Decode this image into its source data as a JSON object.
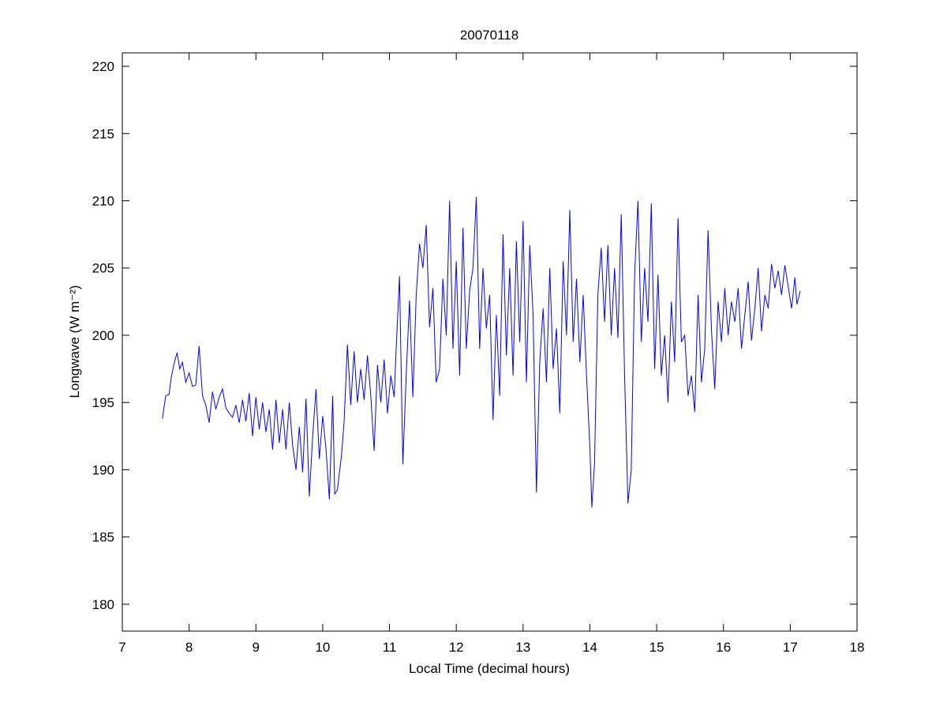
{
  "chart_data": {
    "type": "line",
    "title": "20070118",
    "xlabel": "Local Time (decimal hours)",
    "ylabel": "Longwave (W m⁻²)",
    "xlim": [
      7,
      18
    ],
    "ylim": [
      178,
      221
    ],
    "xticks": [
      7,
      8,
      9,
      10,
      11,
      12,
      13,
      14,
      15,
      16,
      17,
      18
    ],
    "yticks": [
      180,
      185,
      190,
      195,
      200,
      205,
      210,
      215,
      220
    ],
    "grid": false,
    "x": [
      7.6,
      7.65,
      7.7,
      7.73,
      7.78,
      7.82,
      7.86,
      7.9,
      7.95,
      8.0,
      8.05,
      8.1,
      8.15,
      8.2,
      8.25,
      8.3,
      8.35,
      8.4,
      8.45,
      8.5,
      8.55,
      8.6,
      8.65,
      8.7,
      8.75,
      8.8,
      8.85,
      8.9,
      8.95,
      9.0,
      9.05,
      9.1,
      9.15,
      9.2,
      9.25,
      9.3,
      9.35,
      9.4,
      9.45,
      9.5,
      9.55,
      9.6,
      9.65,
      9.7,
      9.75,
      9.8,
      9.85,
      9.9,
      9.95,
      10.0,
      10.05,
      10.1,
      10.15,
      10.18,
      10.22,
      10.28,
      10.32,
      10.37,
      10.42,
      10.47,
      10.52,
      10.57,
      10.62,
      10.67,
      10.72,
      10.77,
      10.82,
      10.87,
      10.92,
      10.97,
      11.02,
      11.07,
      11.1,
      11.15,
      11.2,
      11.25,
      11.3,
      11.35,
      11.4,
      11.45,
      11.5,
      11.55,
      11.6,
      11.65,
      11.7,
      11.75,
      11.8,
      11.85,
      11.9,
      11.95,
      12.0,
      12.05,
      12.1,
      12.15,
      12.2,
      12.25,
      12.3,
      12.35,
      12.4,
      12.45,
      12.5,
      12.55,
      12.6,
      12.65,
      12.7,
      12.75,
      12.8,
      12.85,
      12.9,
      12.95,
      13.0,
      13.05,
      13.1,
      13.15,
      13.2,
      13.25,
      13.3,
      13.35,
      13.4,
      13.45,
      13.5,
      13.55,
      13.6,
      13.65,
      13.7,
      13.75,
      13.8,
      13.85,
      13.9,
      13.95,
      14.0,
      14.03,
      14.07,
      14.12,
      14.17,
      14.22,
      14.27,
      14.32,
      14.37,
      14.42,
      14.47,
      14.52,
      14.57,
      14.62,
      14.67,
      14.72,
      14.77,
      14.82,
      14.87,
      14.92,
      14.97,
      15.02,
      15.07,
      15.12,
      15.17,
      15.22,
      15.27,
      15.32,
      15.37,
      15.42,
      15.47,
      15.52,
      15.57,
      15.62,
      15.67,
      15.72,
      15.77,
      15.82,
      15.87,
      15.92,
      15.97,
      16.02,
      16.07,
      16.12,
      16.17,
      16.22,
      16.27,
      16.32,
      16.37,
      16.42,
      16.47,
      16.52,
      16.57,
      16.62,
      16.67,
      16.72,
      16.77,
      16.82,
      16.87,
      16.92,
      16.97,
      17.02,
      17.07,
      17.1,
      17.15
    ],
    "series": [
      {
        "color": "#0000ff",
        "values": [
          193.8,
          195.5,
          195.6,
          196.8,
          198.0,
          198.7,
          197.5,
          198.0,
          196.5,
          197.2,
          196.2,
          196.3,
          199.2,
          195.5,
          194.8,
          193.5,
          195.8,
          194.5,
          195.4,
          196.0,
          194.6,
          194.2,
          193.9,
          194.8,
          193.5,
          195.2,
          193.6,
          195.7,
          192.5,
          195.4,
          193.0,
          195.0,
          192.8,
          194.5,
          191.5,
          195.2,
          192.0,
          194.5,
          191.5,
          195.0,
          191.8,
          190.0,
          193.2,
          189.8,
          195.3,
          188.0,
          192.5,
          196.0,
          190.8,
          194.0,
          191.5,
          187.8,
          195.5,
          188.2,
          188.5,
          191.0,
          193.5,
          199.3,
          194.8,
          198.8,
          195.0,
          197.5,
          195.2,
          198.5,
          195.5,
          191.4,
          197.8,
          195.0,
          198.2,
          194.2,
          197.0,
          195.4,
          199.0,
          204.4,
          190.4,
          197.0,
          202.6,
          195.4,
          203.0,
          206.8,
          205.0,
          208.2,
          200.6,
          203.5,
          196.5,
          197.5,
          204.2,
          200.0,
          210.0,
          199.0,
          205.5,
          197.0,
          208.0,
          199.0,
          203.3,
          205.0,
          210.3,
          199.0,
          205.0,
          200.5,
          203.0,
          193.7,
          201.5,
          195.5,
          207.5,
          198.5,
          205.0,
          197.0,
          207.0,
          199.5,
          208.5,
          196.5,
          206.7,
          201.5,
          188.3,
          198.0,
          202.0,
          196.5,
          205.0,
          197.5,
          200.5,
          194.2,
          205.5,
          200.0,
          209.3,
          199.5,
          204.2,
          198.0,
          203.0,
          197.0,
          191.7,
          187.2,
          190.5,
          203.0,
          206.5,
          201.0,
          206.7,
          200.0,
          205.0,
          199.8,
          209.0,
          197.0,
          187.5,
          190.0,
          204.5,
          210.0,
          199.5,
          205.0,
          201.0,
          209.8,
          197.5,
          204.5,
          197.0,
          200.0,
          195.0,
          202.5,
          198.0,
          208.7,
          199.5,
          200.0,
          195.5,
          197.0,
          194.3,
          203.0,
          196.5,
          199.0,
          207.8,
          200.5,
          196.0,
          202.5,
          199.5,
          203.5,
          200.0,
          202.5,
          201.0,
          203.5,
          199.0,
          201.5,
          204.0,
          199.6,
          202.0,
          205.0,
          200.3,
          203.0,
          202.0,
          205.3,
          203.5,
          204.8,
          203.0,
          205.2,
          203.6,
          202.0,
          204.3,
          202.3,
          203.3
        ]
      }
    ]
  }
}
